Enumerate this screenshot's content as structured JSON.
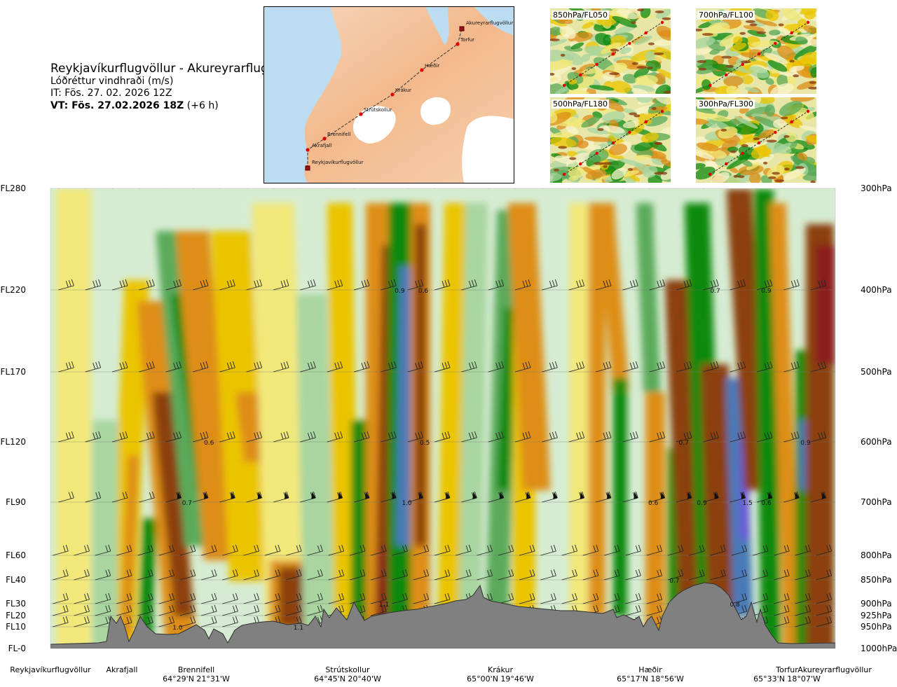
{
  "header": {
    "route": "Reykjavíkurflugvöllur - Akureyrarflugvöllur",
    "variable": "Lóðréttur vindhraði (m/s)",
    "issue_time": "IT: Fös. 27. 02. 2026 12Z",
    "valid_label": "VT: Fös. 27.02.2026 18Z",
    "valid_offset": "(+6 h)"
  },
  "map": {
    "waypoints": [
      {
        "name": "Reykjavíkurflugvöllur"
      },
      {
        "name": "Akrafjall"
      },
      {
        "name": "Brennifell"
      },
      {
        "name": "Strútskollur"
      },
      {
        "name": "Krákur"
      },
      {
        "name": "Hæðir"
      },
      {
        "name": "Torfur"
      },
      {
        "name": "Akureyrarflugvöllur"
      }
    ]
  },
  "panels": [
    {
      "label": "850hPa/FL050"
    },
    {
      "label": "700hPa/FL100"
    },
    {
      "label": "500hPa/FL180"
    },
    {
      "label": "300hPa/FL300"
    }
  ],
  "chart_data": {
    "type": "heatmap",
    "title": "",
    "levels_fl": [
      "FL280",
      "FL220",
      "FL170",
      "FL120",
      "FL90",
      "FL60",
      "FL40",
      "FL30",
      "FL20",
      "FL10",
      "FL-0"
    ],
    "levels_hpa": [
      "300hPa",
      "400hPa",
      "500hPa",
      "600hPa",
      "700hPa",
      "800hPa",
      "850hPa",
      "900hPa",
      "925hPa",
      "950hPa",
      "1000hPa"
    ],
    "colors": {
      "strong_down": "#8b1a1a",
      "down_brown": "#8b3f10",
      "down_orange": "#de8e18",
      "down_yellow": "#ebc400",
      "weak_down": "#f2e87a",
      "neutral": "#f8f3c8",
      "weak_up": "#d6ecd2",
      "up_light": "#a8d5a0",
      "up_mid": "#5aaa5a",
      "up_green": "#108a10",
      "up_blue": "#4a7ab8",
      "up_violet": "#6a5ad8",
      "terrain": "#808080"
    },
    "annotations": [
      {
        "text": "0.9",
        "track": 0.445,
        "fl": 220
      },
      {
        "text": "0.6",
        "track": 0.475,
        "fl": 220
      },
      {
        "text": "0.7",
        "track": 0.847,
        "fl": 220
      },
      {
        "text": "0.9",
        "track": 0.912,
        "fl": 220
      },
      {
        "text": "0.6",
        "track": 0.202,
        "fl": 120
      },
      {
        "text": "0.5",
        "track": 0.477,
        "fl": 120
      },
      {
        "text": "0.7",
        "track": 0.807,
        "fl": 120
      },
      {
        "text": "0.9",
        "track": 0.962,
        "fl": 120
      },
      {
        "text": "0.7",
        "track": 0.174,
        "fl": 90
      },
      {
        "text": "1.0",
        "track": 0.454,
        "fl": 90
      },
      {
        "text": "0.6",
        "track": 0.768,
        "fl": 90
      },
      {
        "text": "0.9",
        "track": 0.83,
        "fl": 90
      },
      {
        "text": "1.5",
        "track": 0.888,
        "fl": 90
      },
      {
        "text": "0.6",
        "track": 0.912,
        "fl": 90
      },
      {
        "text": "0.7",
        "track": 0.795,
        "fl": 40
      },
      {
        "text": "1.1",
        "track": 0.425,
        "fl": 30
      },
      {
        "text": "0.8",
        "track": 0.872,
        "fl": 30
      },
      {
        "text": "1.0",
        "track": 0.162,
        "fl": 10
      },
      {
        "text": "1.1",
        "track": 0.316,
        "fl": 10
      }
    ]
  },
  "bottom_labels": [
    {
      "name": "Reykjavíkurflugvöllur",
      "coord": ""
    },
    {
      "name": "Akrafjall",
      "coord": ""
    },
    {
      "name": "Brennifell",
      "coord": "64°29'N 21°31'W"
    },
    {
      "name": "Strútskollur",
      "coord": "64°45'N 20°40'W"
    },
    {
      "name": "Krákur",
      "coord": "65°00'N 19°46'W"
    },
    {
      "name": "Hæðir",
      "coord": "65°17'N 18°56'W"
    },
    {
      "name": "Torfur",
      "coord": "65°33'N 18°07'W"
    },
    {
      "name": "Akureyrarflugvöllur",
      "coord": ""
    }
  ]
}
